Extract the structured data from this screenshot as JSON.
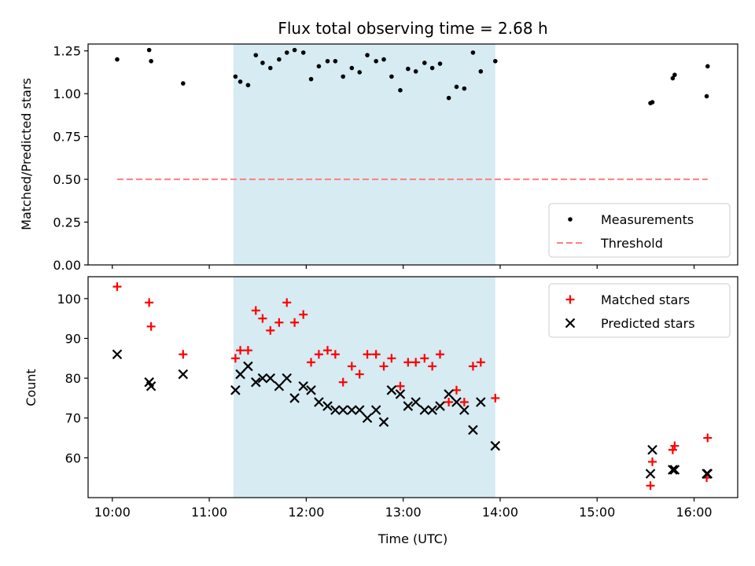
{
  "chart_data": {
    "title": "Flux total observing time = 2.68 h",
    "xlabel": "Time (UTC)",
    "xlim": [
      9.75,
      16.45
    ],
    "x_ticks": [
      {
        "value": 10,
        "label": "10:00"
      },
      {
        "value": 11,
        "label": "11:00"
      },
      {
        "value": 12,
        "label": "12:00"
      },
      {
        "value": 13,
        "label": "13:00"
      },
      {
        "value": 14,
        "label": "14:00"
      },
      {
        "value": 15,
        "label": "15:00"
      },
      {
        "value": 16,
        "label": "16:00"
      }
    ],
    "shaded_region": {
      "x_start": 11.25,
      "x_end": 13.95,
      "color": "#add8e6"
    },
    "subplots": [
      {
        "type": "scatter",
        "ylabel": "Matched/Predicted stars",
        "ylim": [
          0,
          1.29
        ],
        "y_ticks": [
          {
            "value": 0,
            "label": "0.00"
          },
          {
            "value": 0.25,
            "label": "0.25"
          },
          {
            "value": 0.5,
            "label": "0.50"
          },
          {
            "value": 0.75,
            "label": "0.75"
          },
          {
            "value": 1.0,
            "label": "1.00"
          },
          {
            "value": 1.25,
            "label": "1.25"
          }
        ],
        "legend": {
          "position": "lower-right",
          "entries": [
            "Measurements",
            "Threshold"
          ]
        },
        "series": [
          {
            "name": "Measurements",
            "kind": "dot",
            "color": "#000000",
            "points": [
              [
                10.05,
                1.2
              ],
              [
                10.38,
                1.255
              ],
              [
                10.4,
                1.19
              ],
              [
                10.73,
                1.06
              ],
              [
                11.27,
                1.1
              ],
              [
                11.32,
                1.07
              ],
              [
                11.4,
                1.05
              ],
              [
                11.48,
                1.225
              ],
              [
                11.55,
                1.18
              ],
              [
                11.63,
                1.15
              ],
              [
                11.72,
                1.2
              ],
              [
                11.8,
                1.24
              ],
              [
                11.88,
                1.255
              ],
              [
                11.97,
                1.24
              ],
              [
                12.05,
                1.085
              ],
              [
                12.13,
                1.16
              ],
              [
                12.22,
                1.19
              ],
              [
                12.3,
                1.19
              ],
              [
                12.38,
                1.1
              ],
              [
                12.47,
                1.15
              ],
              [
                12.55,
                1.125
              ],
              [
                12.63,
                1.225
              ],
              [
                12.72,
                1.19
              ],
              [
                12.8,
                1.2
              ],
              [
                12.88,
                1.1
              ],
              [
                12.97,
                1.02
              ],
              [
                13.05,
                1.145
              ],
              [
                13.13,
                1.13
              ],
              [
                13.22,
                1.18
              ],
              [
                13.3,
                1.15
              ],
              [
                13.38,
                1.175
              ],
              [
                13.47,
                0.975
              ],
              [
                13.55,
                1.04
              ],
              [
                13.63,
                1.03
              ],
              [
                13.72,
                1.24
              ],
              [
                13.8,
                1.13
              ],
              [
                13.95,
                1.19
              ],
              [
                15.55,
                0.945
              ],
              [
                15.57,
                0.95
              ],
              [
                15.78,
                1.09
              ],
              [
                15.8,
                1.11
              ],
              [
                16.13,
                0.985
              ],
              [
                16.14,
                1.16
              ]
            ]
          },
          {
            "name": "Threshold",
            "kind": "dashed-line",
            "color": "#ff7f7f",
            "points": [
              [
                10.05,
                0.5
              ],
              [
                16.14,
                0.5
              ]
            ]
          }
        ]
      },
      {
        "type": "scatter",
        "ylabel": "Count",
        "ylim": [
          50,
          105.5
        ],
        "y_ticks": [
          {
            "value": 60,
            "label": "60"
          },
          {
            "value": 70,
            "label": "70"
          },
          {
            "value": 80,
            "label": "80"
          },
          {
            "value": 90,
            "label": "90"
          },
          {
            "value": 100,
            "label": "100"
          }
        ],
        "legend": {
          "position": "top-right",
          "entries": [
            "Matched stars",
            "Predicted stars"
          ]
        },
        "series": [
          {
            "name": "Matched stars",
            "kind": "plus",
            "color": "#ff0000",
            "points": [
              [
                10.05,
                103
              ],
              [
                10.38,
                99
              ],
              [
                10.4,
                93
              ],
              [
                10.73,
                86
              ],
              [
                11.27,
                85
              ],
              [
                11.32,
                87
              ],
              [
                11.4,
                87
              ],
              [
                11.48,
                97
              ],
              [
                11.55,
                95
              ],
              [
                11.63,
                92
              ],
              [
                11.72,
                94
              ],
              [
                11.8,
                99
              ],
              [
                11.88,
                94
              ],
              [
                11.97,
                96
              ],
              [
                12.05,
                84
              ],
              [
                12.13,
                86
              ],
              [
                12.22,
                87
              ],
              [
                12.3,
                86
              ],
              [
                12.38,
                79
              ],
              [
                12.47,
                83
              ],
              [
                12.55,
                81
              ],
              [
                12.63,
                86
              ],
              [
                12.72,
                86
              ],
              [
                12.8,
                83
              ],
              [
                12.88,
                85
              ],
              [
                12.97,
                78
              ],
              [
                13.05,
                84
              ],
              [
                13.13,
                84
              ],
              [
                13.22,
                85
              ],
              [
                13.3,
                83
              ],
              [
                13.38,
                86
              ],
              [
                13.47,
                74
              ],
              [
                13.55,
                77
              ],
              [
                13.63,
                74
              ],
              [
                13.72,
                83
              ],
              [
                13.8,
                84
              ],
              [
                13.95,
                75
              ],
              [
                15.55,
                53
              ],
              [
                15.57,
                59
              ],
              [
                15.78,
                62
              ],
              [
                15.8,
                63
              ],
              [
                16.13,
                55
              ],
              [
                16.14,
                65
              ]
            ]
          },
          {
            "name": "Predicted stars",
            "kind": "x",
            "color": "#000000",
            "points": [
              [
                10.05,
                86
              ],
              [
                10.38,
                79
              ],
              [
                10.4,
                78
              ],
              [
                10.73,
                81
              ],
              [
                11.27,
                77
              ],
              [
                11.32,
                81
              ],
              [
                11.4,
                83
              ],
              [
                11.48,
                79
              ],
              [
                11.55,
                80
              ],
              [
                11.63,
                80
              ],
              [
                11.72,
                78
              ],
              [
                11.8,
                80
              ],
              [
                11.88,
                75
              ],
              [
                11.97,
                78
              ],
              [
                12.05,
                77
              ],
              [
                12.13,
                74
              ],
              [
                12.22,
                73
              ],
              [
                12.3,
                72
              ],
              [
                12.38,
                72
              ],
              [
                12.47,
                72
              ],
              [
                12.55,
                72
              ],
              [
                12.63,
                70
              ],
              [
                12.72,
                72
              ],
              [
                12.8,
                69
              ],
              [
                12.88,
                77
              ],
              [
                12.97,
                76
              ],
              [
                13.05,
                73
              ],
              [
                13.13,
                74
              ],
              [
                13.22,
                72
              ],
              [
                13.3,
                72
              ],
              [
                13.38,
                73
              ],
              [
                13.47,
                76
              ],
              [
                13.55,
                74
              ],
              [
                13.63,
                72
              ],
              [
                13.72,
                67
              ],
              [
                13.8,
                74
              ],
              [
                13.95,
                63
              ],
              [
                15.55,
                56
              ],
              [
                15.57,
                62
              ],
              [
                15.78,
                57
              ],
              [
                15.8,
                57
              ],
              [
                16.13,
                56
              ],
              [
                16.14,
                56
              ]
            ]
          }
        ]
      }
    ]
  }
}
